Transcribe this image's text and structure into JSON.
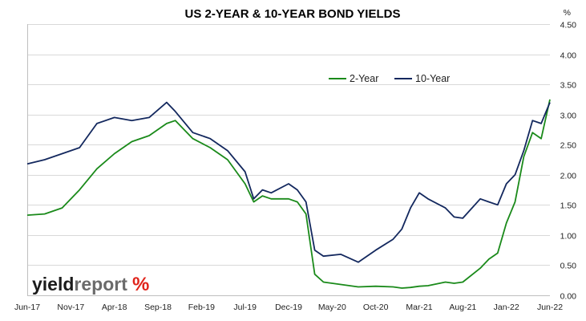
{
  "chart_data": {
    "type": "line",
    "title": "US 2-YEAR & 10-YEAR BOND YIELDS",
    "y_unit": "%",
    "ylim": [
      0,
      4.5
    ],
    "y_ticks": [
      "0.00",
      "0.50",
      "1.00",
      "1.50",
      "2.00",
      "2.50",
      "3.00",
      "3.50",
      "4.00",
      "4.50"
    ],
    "y_axis_side": "right",
    "x_ticks": [
      "Jun-17",
      "Nov-17",
      "Apr-18",
      "Sep-18",
      "Feb-19",
      "Jul-19",
      "Dec-19",
      "May-20",
      "Oct-20",
      "Mar-21",
      "Aug-21",
      "Jan-22",
      "Jun-22"
    ],
    "grid": "horizontal",
    "legend_position": "top-right",
    "x": [
      "2017-06",
      "2017-08",
      "2017-10",
      "2017-12",
      "2018-02",
      "2018-04",
      "2018-06",
      "2018-08",
      "2018-10",
      "2018-11",
      "2019-01",
      "2019-03",
      "2019-05",
      "2019-07",
      "2019-08",
      "2019-09",
      "2019-10",
      "2019-12",
      "2020-01",
      "2020-02",
      "2020-03",
      "2020-04",
      "2020-06",
      "2020-08",
      "2020-10",
      "2020-12",
      "2021-01",
      "2021-02",
      "2021-03",
      "2021-04",
      "2021-06",
      "2021-07",
      "2021-08",
      "2021-10",
      "2021-11",
      "2021-12",
      "2022-01",
      "2022-02",
      "2022-03",
      "2022-04",
      "2022-05",
      "2022-06"
    ],
    "series": [
      {
        "name": "2-Year",
        "color": "#1a8a1a",
        "values": [
          1.33,
          1.35,
          1.45,
          1.75,
          2.1,
          2.35,
          2.55,
          2.65,
          2.85,
          2.9,
          2.6,
          2.45,
          2.25,
          1.85,
          1.55,
          1.65,
          1.6,
          1.6,
          1.55,
          1.35,
          0.35,
          0.22,
          0.18,
          0.14,
          0.15,
          0.14,
          0.12,
          0.13,
          0.15,
          0.16,
          0.22,
          0.2,
          0.22,
          0.45,
          0.6,
          0.7,
          1.2,
          1.55,
          2.3,
          2.7,
          2.6,
          3.25
        ]
      },
      {
        "name": "10-Year",
        "color": "#13285e",
        "values": [
          2.18,
          2.25,
          2.35,
          2.45,
          2.85,
          2.95,
          2.9,
          2.95,
          3.2,
          3.05,
          2.7,
          2.6,
          2.4,
          2.05,
          1.6,
          1.75,
          1.7,
          1.85,
          1.75,
          1.55,
          0.75,
          0.65,
          0.68,
          0.55,
          0.75,
          0.93,
          1.1,
          1.45,
          1.7,
          1.6,
          1.45,
          1.3,
          1.28,
          1.6,
          1.55,
          1.5,
          1.85,
          2.0,
          2.4,
          2.9,
          2.85,
          3.2
        ]
      }
    ]
  },
  "logo": {
    "word_dark": "yield",
    "word_light": "report",
    "symbol": "%"
  }
}
